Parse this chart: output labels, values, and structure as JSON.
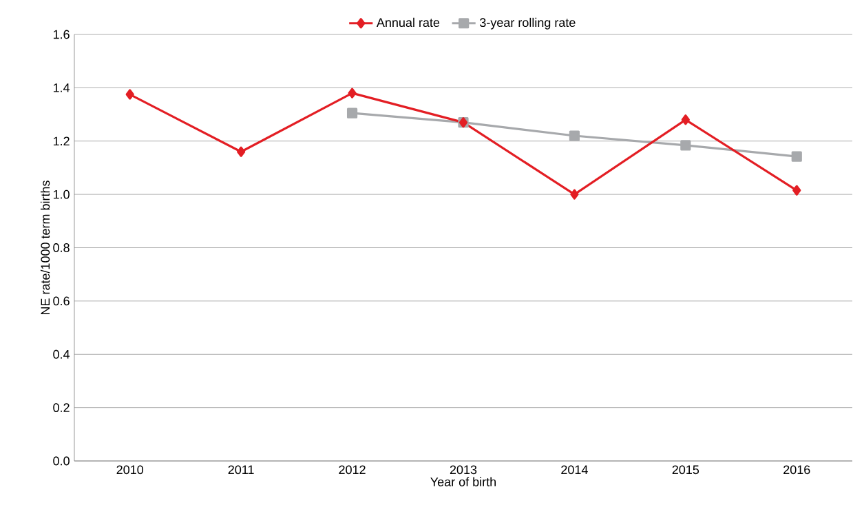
{
  "chart_data": {
    "type": "line",
    "xlabel": "Year of birth",
    "ylabel": "NE rate/1000 term births",
    "categories": [
      "2010",
      "2011",
      "2012",
      "2013",
      "2014",
      "2015",
      "2016"
    ],
    "series": [
      {
        "name": "Annual rate",
        "color": "#e31e24",
        "marker": "diamond",
        "values": [
          1.375,
          1.16,
          1.38,
          1.27,
          1.0,
          1.28,
          1.015
        ]
      },
      {
        "name": "3-year rolling rate",
        "color": "#a7a9ac",
        "marker": "square",
        "values": [
          null,
          null,
          1.305,
          1.27,
          1.22,
          1.184,
          1.142
        ]
      }
    ],
    "ylim": [
      0,
      1.6
    ],
    "yticks": [
      {
        "value": 0,
        "label": "0.0"
      },
      {
        "value": 0.2,
        "label": "0.2"
      },
      {
        "value": 0.4,
        "label": "0.4"
      },
      {
        "value": 0.6,
        "label": "0.6"
      },
      {
        "value": 0.8,
        "label": "0.8"
      },
      {
        "value": 1.0,
        "label": "1.0"
      },
      {
        "value": 1.2,
        "label": "1.2"
      },
      {
        "value": 1.4,
        "label": "1.4"
      },
      {
        "value": 1.6,
        "label": "1.6"
      }
    ],
    "grid": "y",
    "legend": "top",
    "line_style": "solid"
  }
}
